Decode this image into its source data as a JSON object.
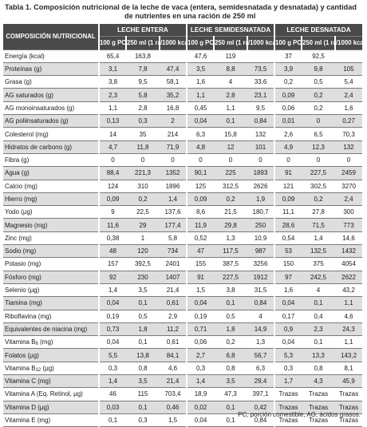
{
  "title": {
    "line1": "Tabla 1. Composición nutricional de la leche de vaca (entera, semidesnatada y desnatada) y cantidad",
    "line2": "de nutrientes en una ración de 250 ml"
  },
  "header": {
    "composition": "COMPOSICIÓN NUTRICIONAL",
    "groups": [
      "LECHE ENTERA",
      "LECHE SEMIDESNATADA",
      "LECHE DESNATADA"
    ],
    "subcols": [
      "100 g PC",
      "250 ml (1 ración)",
      "/1000 kcal"
    ]
  },
  "rows": [
    {
      "name": "Energía (kcal)",
      "v": [
        "65,4",
        "163,8",
        "",
        "47,6",
        "119",
        "",
        "37",
        "92,5",
        ""
      ]
    },
    {
      "name": "Proteínas (g)",
      "v": [
        "3,1",
        "7,8",
        "47,4",
        "3,5",
        "8,8",
        "73,5",
        "3,9",
        "9,8",
        "105"
      ]
    },
    {
      "name": "Grasa (g)",
      "v": [
        "3,8",
        "9,5",
        "58,1",
        "1,6",
        "4",
        "33,6",
        "0,2",
        "0,5",
        "5,4"
      ]
    },
    {
      "name": "AG saturados (g)",
      "v": [
        "2,3",
        "5,8",
        "35,2",
        "1,1",
        "2,8",
        "23,1",
        "0,09",
        "0,2",
        "2,4"
      ]
    },
    {
      "name": "AG monoinsaturados (g)",
      "v": [
        "1,1",
        "2,8",
        "16,8",
        "0,45",
        "1,1",
        "9,5",
        "0,06",
        "0,2",
        "1,6"
      ]
    },
    {
      "name": "AG poliinsaturados (g)",
      "v": [
        "0,13",
        "0,3",
        "2",
        "0,04",
        "0,1",
        "0,84",
        "0,01",
        "0",
        "0,27"
      ]
    },
    {
      "name": "Colesterol (mg)",
      "v": [
        "14",
        "35",
        "214",
        "6,3",
        "15,8",
        "132",
        "2,6",
        "6,5",
        "70,3"
      ]
    },
    {
      "name": "Hidratos de carbono (g)",
      "v": [
        "4,7",
        "11,8",
        "71,9",
        "4,8",
        "12",
        "101",
        "4,9",
        "12,3",
        "132"
      ]
    },
    {
      "name": "Fibra (g)",
      "v": [
        "0",
        "0",
        "0",
        "0",
        "0",
        "0",
        "0",
        "0",
        "0"
      ]
    },
    {
      "name": "Agua (g)",
      "v": [
        "88,4",
        "221,3",
        "1352",
        "90,1",
        "225",
        "1893",
        "91",
        "227,5",
        "2459"
      ]
    },
    {
      "name": "Calcio (mg)",
      "v": [
        "124",
        "310",
        "1896",
        "125",
        "312,5",
        "2626",
        "121",
        "302,5",
        "3270"
      ]
    },
    {
      "name": "Hierro (mg)",
      "v": [
        "0,09",
        "0,2",
        "1,4",
        "0,09",
        "0,2",
        "1,9",
        "0,09",
        "0,2",
        "2,4"
      ]
    },
    {
      "name": "Yodo (μg)",
      "v": [
        "9",
        "22,5",
        "137,6",
        "8,6",
        "21,5",
        "180,7",
        "11,1",
        "27,8",
        "300"
      ]
    },
    {
      "name": "Magnesio (mg)",
      "v": [
        "11,6",
        "29",
        "177,4",
        "11,9",
        "29,8",
        "250",
        "28,6",
        "71,5",
        "773"
      ]
    },
    {
      "name": "Zinc (mg)",
      "v": [
        "0,38",
        "1",
        "5,8",
        "0,52",
        "1,3",
        "10,9",
        "0,54",
        "1,4",
        "14,6"
      ]
    },
    {
      "name": "Sodio (mg)",
      "v": [
        "48",
        "120",
        "734",
        "47",
        "117,5",
        "987",
        "53",
        "132,5",
        "1432"
      ]
    },
    {
      "name": "Potasio (mg)",
      "v": [
        "157",
        "392,5",
        "2401",
        "155",
        "387,5",
        "3256",
        "150",
        "375",
        "4054"
      ]
    },
    {
      "name": "Fósforo (mg)",
      "v": [
        "92",
        "230",
        "1407",
        "91",
        "227,5",
        "1912",
        "97",
        "242,5",
        "2622"
      ]
    },
    {
      "name": "Selenio (μg)",
      "v": [
        "1,4",
        "3,5",
        "21,4",
        "1,5",
        "3,8",
        "31,5",
        "1,6",
        "4",
        "43,2"
      ]
    },
    {
      "name": "Tiamina (mg)",
      "v": [
        "0,04",
        "0,1",
        "0,61",
        "0,04",
        "0,1",
        "0,84",
        "0,04",
        "0,1",
        "1,1"
      ]
    },
    {
      "name": "Riboflavina (mg)",
      "v": [
        "0,19",
        "0,5",
        "2,9",
        "0,19",
        "0,5",
        "4",
        "0,17",
        "0,4",
        "4,6"
      ]
    },
    {
      "name": "Equivalentes de niacina (mg)",
      "v": [
        "0,73",
        "1,8",
        "11,2",
        "0,71",
        "1,8",
        "14,9",
        "0,9",
        "2,3",
        "24,3"
      ]
    },
    {
      "name": "Vitamina B",
      "sub": "6",
      "suffix": " (mg)",
      "v": [
        "0,04",
        "0,1",
        "0,61",
        "0,06",
        "0,2",
        "1,3",
        "0,04",
        "0,1",
        "1,1"
      ]
    },
    {
      "name": "Folatos (μg)",
      "v": [
        "5,5",
        "13,8",
        "84,1",
        "2,7",
        "6,8",
        "56,7",
        "5,3",
        "13,3",
        "143,2"
      ]
    },
    {
      "name": "Vitamina B",
      "sub": "12",
      "suffix": " (μg)",
      "v": [
        "0,3",
        "0,8",
        "4,6",
        "0,3",
        "0,8",
        "6,3",
        "0,3",
        "0,8",
        "8,1"
      ]
    },
    {
      "name": "Vitamina C (mg)",
      "v": [
        "1,4",
        "3,5",
        "21,4",
        "1,4",
        "3,5",
        "29,4",
        "1,7",
        "4,3",
        "45,9"
      ]
    },
    {
      "name": "Vitamina A (Eq. Retinol, μg)",
      "v": [
        "46",
        "115",
        "703,4",
        "18,9",
        "47,3",
        "397,1",
        "Trazas",
        "Trazas",
        "Trazas"
      ]
    },
    {
      "name": "Vitamina D (μg)",
      "v": [
        "0,03",
        "0,1",
        "0,46",
        "0,02",
        "0,1",
        "0,42",
        "Trazas",
        "Trazas",
        "Trazas"
      ]
    },
    {
      "name": "Vitamina E (mg)",
      "v": [
        "0,1",
        "0,3",
        "1,5",
        "0,04",
        "0,1",
        "0,84",
        "Trazas",
        "Trazas",
        "Trazas"
      ]
    }
  ],
  "footnote": "PC, porción comestible, AG, ácidos grasos."
}
